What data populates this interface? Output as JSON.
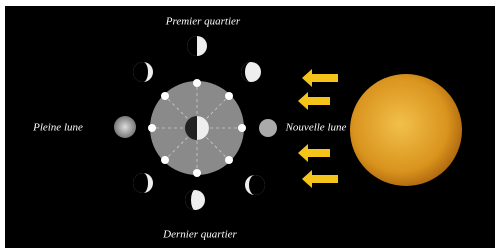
{
  "labels": {
    "top": "Premier quartier",
    "left": "Pleine lune",
    "right": "Nouvelle lune",
    "bottom": "Dernier quartier"
  }
}
